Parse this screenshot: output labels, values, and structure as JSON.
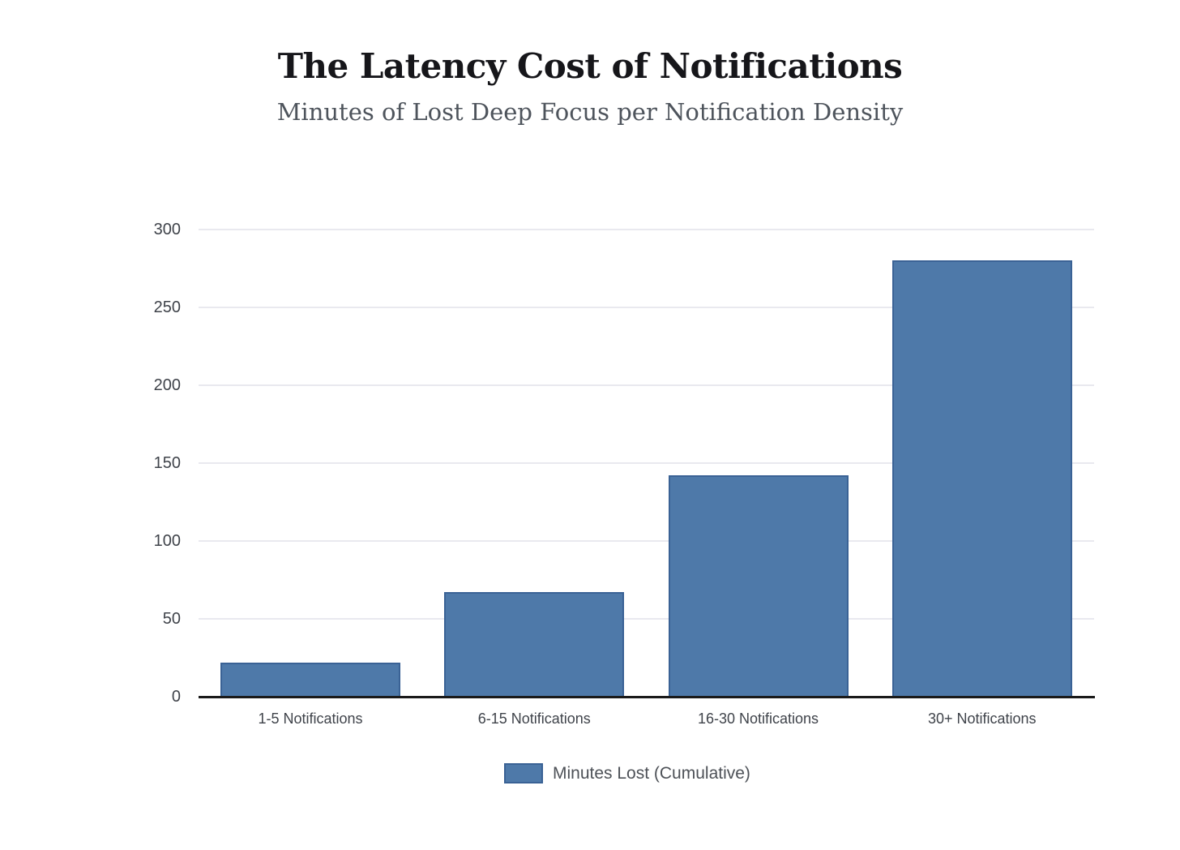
{
  "header": {
    "title": "The Latency Cost of Notifications",
    "subtitle": "Minutes of Lost Deep Focus per Notification Density"
  },
  "chart_data": {
    "type": "bar",
    "title": "The Latency Cost of Notifications",
    "subtitle": "Minutes of Lost Deep Focus per Notification Density",
    "categories": [
      "1-5 Notifications",
      "6-15 Notifications",
      "16-30 Notifications",
      "30+ Notifications"
    ],
    "series": [
      {
        "name": "Minutes Lost (Cumulative)",
        "values": [
          22,
          67,
          142,
          280
        ]
      }
    ],
    "xlabel": "",
    "ylabel": "",
    "ylim": [
      0,
      300
    ],
    "yticks": [
      0,
      50,
      100,
      150,
      200,
      250,
      300
    ],
    "grid": true,
    "legend": {
      "position": "bottom",
      "entries": [
        "Minutes Lost (Cumulative)"
      ]
    },
    "colors": {
      "bar_fill": "#4e79a9",
      "bar_border": "#3a6295",
      "gridline": "#e9e9ef",
      "axis_line": "#1a1a1a",
      "tick_label": "#3f434a",
      "title": "#16161a",
      "subtitle": "#4e545c",
      "legend_label": "#4d5157",
      "background": "#ffffff"
    }
  }
}
